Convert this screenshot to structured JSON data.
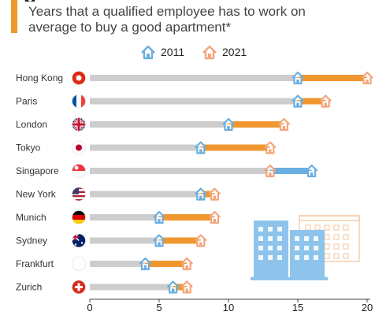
{
  "header": {
    "title_fragment": "p",
    "subtitle_line1": "Years that a qualified employee has to work on",
    "subtitle_line2": "average to buy a good apartment*"
  },
  "colors": {
    "accent": "#F0962F",
    "c2011": "#6AAEDF",
    "c2021": "#F0962F",
    "c2021_icon": "#F4A57C",
    "track": "#CDCDCD",
    "axis": "#444444"
  },
  "chart_data": {
    "type": "bar",
    "series": [
      {
        "name": "2011",
        "values": [
          15,
          15,
          10,
          8,
          16,
          8,
          5,
          5,
          4,
          6
        ]
      },
      {
        "name": "2021",
        "values": [
          20,
          17,
          14,
          13,
          13,
          9,
          9,
          8,
          7,
          7
        ]
      }
    ],
    "categories": [
      "Hong Kong",
      "Paris",
      "London",
      "Tokyo",
      "Singapore",
      "New York",
      "Munich",
      "Sydney",
      "Frankfurt",
      "Zurich"
    ],
    "flags": [
      "hk",
      "fr",
      "gb",
      "jp",
      "sg",
      "us",
      "de",
      "au",
      "de",
      "ch"
    ],
    "xlim": [
      0,
      20
    ],
    "xticks": [
      0,
      5,
      10,
      15,
      20
    ],
    "legend_position": "top-center",
    "grid": false
  }
}
